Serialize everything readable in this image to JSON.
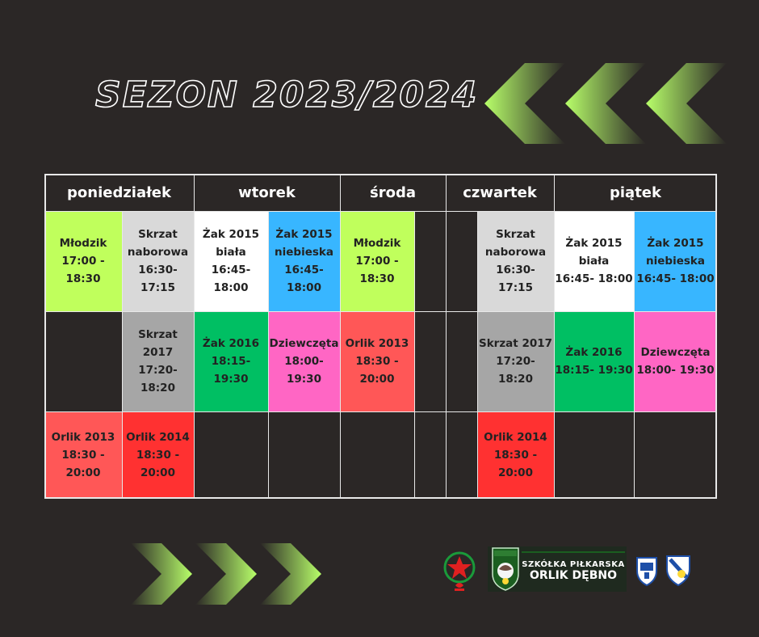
{
  "title": "SEZON 2023/2024",
  "days": [
    "poniedziałek",
    "wtorek",
    "środa",
    "czwartek",
    "piątek"
  ],
  "rows": [
    [
      {
        "text": "Młodzik\n17:00 - 18:30",
        "color": "#c0ff5c"
      },
      {
        "text": "Skrzat\nnaborowa\n16:30- 17:15",
        "color": "#d9d9d9"
      },
      {
        "text": "Żak  2015\nbiała\n16:45- 18:00",
        "color": "#ffffff"
      },
      {
        "text": "Żak 2015\nniebieska\n16:45- 18:00",
        "color": "#38b6ff"
      },
      {
        "text": "Młodzik\n17:00 - 18:30",
        "color": "#c0ff5c"
      },
      {
        "text": "",
        "color": ""
      },
      {
        "text": "",
        "color": ""
      },
      {
        "text": "Skrzat\nnaborowa\n16:30- 17:15",
        "color": "#d9d9d9"
      },
      {
        "text": "Żak  2015\nbiała\n16:45- 18:00",
        "color": "#ffffff"
      },
      {
        "text": "Żak 2015\nniebieska\n16:45- 18:00",
        "color": "#38b6ff"
      }
    ],
    [
      {
        "text": "",
        "color": ""
      },
      {
        "text": "Skrzat 2017\n17:20- 18:20",
        "color": "#a6a6a6"
      },
      {
        "text": "Żak 2016\n18:15- 19:30",
        "color": "#00bf63"
      },
      {
        "text": "Dziewczęta\n18:00- 19:30",
        "color": "#ff66c4"
      },
      {
        "text": "Orlik  2013\n18:30 - 20:00",
        "color": "#ff5757"
      },
      {
        "text": "",
        "color": ""
      },
      {
        "text": "",
        "color": ""
      },
      {
        "text": "Skrzat 2017\n17:20- 18:20",
        "color": "#a6a6a6"
      },
      {
        "text": "Żak 2016\n18:15- 19:30",
        "color": "#00bf63"
      },
      {
        "text": "Dziewczęta\n18:00- 19:30",
        "color": "#ff66c4"
      }
    ],
    [
      {
        "text": "Orlik  2013\n18:30 - 20:00",
        "color": "#ff5757"
      },
      {
        "text": "Orlik 2014\n18:30 - 20:00",
        "color": "#ff3131"
      },
      {
        "text": "",
        "color": ""
      },
      {
        "text": "",
        "color": ""
      },
      {
        "text": "",
        "color": ""
      },
      {
        "text": "",
        "color": ""
      },
      {
        "text": "",
        "color": ""
      },
      {
        "text": "Orlik 2014\n18:30 - 20:00",
        "color": "#ff3131"
      },
      {
        "text": "",
        "color": ""
      },
      {
        "text": "",
        "color": ""
      }
    ]
  ],
  "logos": {
    "club_line1": "SZKÓŁKA PIŁKARSKA",
    "club_line2": "ORLIK DĘBNO",
    "crest_text": "ORLIK DĘBNO"
  },
  "colors": {
    "background": "#2b2726",
    "chevron_light": "#b8ff6a",
    "grid": "#e8e8e8"
  }
}
